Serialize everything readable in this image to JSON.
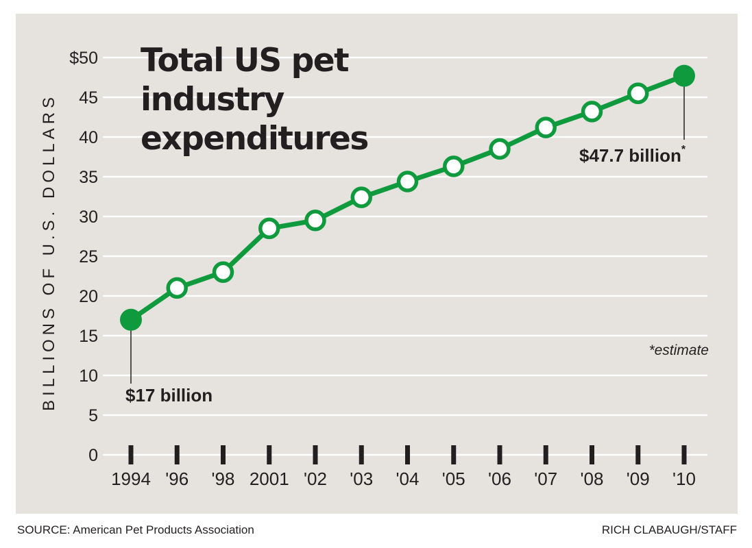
{
  "chart_data": {
    "type": "line",
    "title": "Total US pet industry expenditures",
    "title_lines": [
      "Total US pet",
      "industry",
      "expenditures"
    ],
    "xlabel": "",
    "ylabel": "BILLIONS OF U.S. DOLLARS",
    "categories": [
      "1994",
      "'96",
      "'98",
      "2001",
      "'02",
      "'03",
      "'04",
      "'05",
      "'06",
      "'07",
      "'08",
      "'09",
      "'10"
    ],
    "series": [
      {
        "name": "Total US pet industry expenditures",
        "values": [
          17.0,
          21.0,
          23.0,
          28.5,
          29.5,
          32.4,
          34.4,
          36.3,
          38.5,
          41.2,
          43.2,
          45.5,
          47.7
        ],
        "color": "#0f9a3e",
        "highlighted_points": [
          0,
          12
        ]
      }
    ],
    "ylim": [
      0,
      50
    ],
    "yticks": [
      0,
      5,
      10,
      15,
      20,
      25,
      30,
      35,
      40,
      45,
      50
    ],
    "ytick_labels": [
      "0",
      "5",
      "10",
      "15",
      "20",
      "25",
      "30",
      "35",
      "40",
      "45",
      "$50"
    ],
    "grid": true,
    "legend": "none",
    "annotations": [
      {
        "point": 0,
        "text": "$17 billion",
        "suffix": ""
      },
      {
        "point": 12,
        "text": "$47.7 billion",
        "suffix": "*"
      }
    ],
    "note": "*estimate"
  },
  "footer": {
    "source": "SOURCE: American Pet Products Association",
    "credit": "RICH CLABAUGH/STAFF"
  },
  "colors": {
    "background": "#e6e2de",
    "line": "#0f9a3e",
    "grid": "#ffffff",
    "text": "#231f20"
  }
}
